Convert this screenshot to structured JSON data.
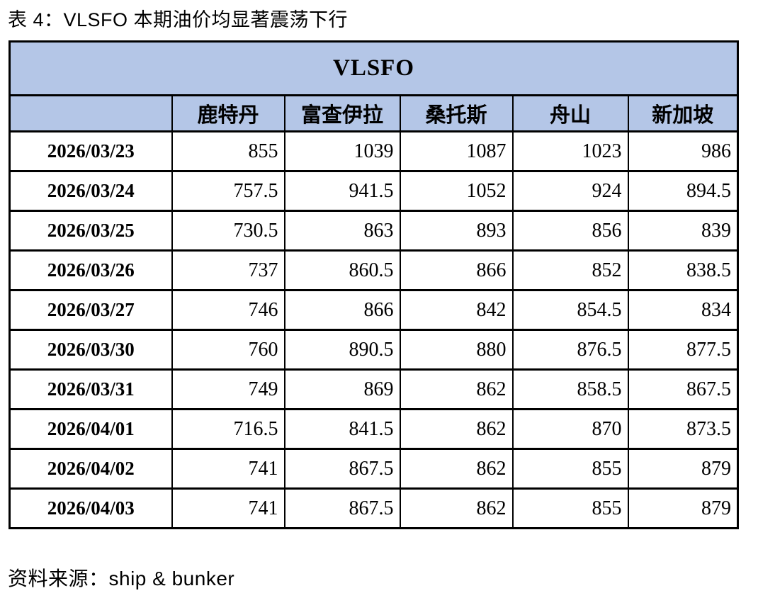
{
  "title": "表 4：VLSFO 本期油价均显著震荡下行",
  "source_note": "资料来源：ship & bunker",
  "colors": {
    "header_bg": "#b4c6e7",
    "border": "#000000",
    "text": "#000000"
  },
  "table": {
    "group_header": "VLSFO",
    "columns": [
      "",
      "鹿特丹",
      "富查伊拉",
      "桑托斯",
      "舟山",
      "新加坡"
    ],
    "rows": [
      {
        "date": "2026/03/23",
        "values": [
          "855",
          "1039",
          "1087",
          "1023",
          "986"
        ]
      },
      {
        "date": "2026/03/24",
        "values": [
          "757.5",
          "941.5",
          "1052",
          "924",
          "894.5"
        ]
      },
      {
        "date": "2026/03/25",
        "values": [
          "730.5",
          "863",
          "893",
          "856",
          "839"
        ]
      },
      {
        "date": "2026/03/26",
        "values": [
          "737",
          "860.5",
          "866",
          "852",
          "838.5"
        ]
      },
      {
        "date": "2026/03/27",
        "values": [
          "746",
          "866",
          "842",
          "854.5",
          "834"
        ]
      },
      {
        "date": "2026/03/30",
        "values": [
          "760",
          "890.5",
          "880",
          "876.5",
          "877.5"
        ]
      },
      {
        "date": "2026/03/31",
        "values": [
          "749",
          "869",
          "862",
          "858.5",
          "867.5"
        ]
      },
      {
        "date": "2026/04/01",
        "values": [
          "716.5",
          "841.5",
          "862",
          "870",
          "873.5"
        ]
      },
      {
        "date": "2026/04/02",
        "values": [
          "741",
          "867.5",
          "862",
          "855",
          "879"
        ]
      },
      {
        "date": "2026/04/03",
        "values": [
          "741",
          "867.5",
          "862",
          "855",
          "879"
        ]
      }
    ]
  }
}
